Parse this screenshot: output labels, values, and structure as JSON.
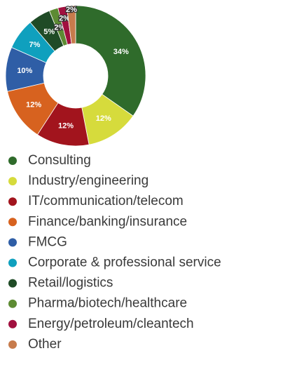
{
  "chart_data": {
    "type": "donut",
    "categories": [
      "Consulting",
      "Industry/engineering",
      "IT/communication/telecom",
      "Finance/banking/insurance",
      "FMCG",
      "Corporate & professional service",
      "Retail/logistics",
      "Pharma/biotech/healthcare",
      "Energy/petroleum/cleantech",
      "Other"
    ],
    "values": [
      34,
      12,
      12,
      12,
      10,
      7,
      5,
      2,
      2,
      2
    ],
    "value_labels": [
      "34%",
      "12%",
      "12%",
      "12%",
      "10%",
      "7%",
      "5%",
      "2%",
      "2%",
      "2%"
    ],
    "colors": [
      "#2f6b2b",
      "#d6db3c",
      "#a2141d",
      "#d7621f",
      "#2f5ea6",
      "#0fa0be",
      "#1f4b26",
      "#5d8b33",
      "#a1103f",
      "#c77b4c"
    ]
  }
}
